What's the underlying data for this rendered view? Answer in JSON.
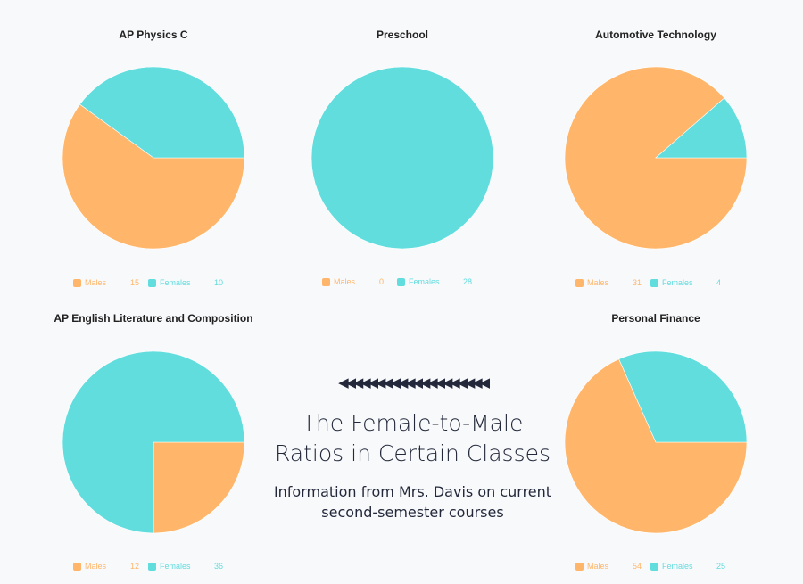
{
  "colors": {
    "males": "#ffb66a",
    "females": "#62ddde"
  },
  "chart_data": [
    {
      "type": "pie",
      "title": "AP Physics C",
      "labels": [
        "Males",
        "Females"
      ],
      "values": [
        15,
        10
      ]
    },
    {
      "type": "pie",
      "title": "Preschool",
      "labels": [
        "Males",
        "Females"
      ],
      "values": [
        0,
        28
      ]
    },
    {
      "type": "pie",
      "title": "Automotive Technology",
      "labels": [
        "Males",
        "Females"
      ],
      "values": [
        31,
        4
      ]
    },
    {
      "type": "pie",
      "title": "AP English Literature and Composition",
      "labels": [
        "Males",
        "Females"
      ],
      "values": [
        12,
        36
      ]
    },
    {
      "type": "pie",
      "title": "Personal Finance",
      "labels": [
        "Males",
        "Females"
      ],
      "values": [
        54,
        25
      ]
    }
  ],
  "infographic": {
    "decoration": "◀◀◀◀◀◀◀◀◀◀◀◀◀◀◀◀◀◀◀◀",
    "headline_line1": "The Female-to-Male",
    "headline_line2": "Ratios in Certain Classes",
    "subtitle_line1": "Information from Mrs. Davis on current",
    "subtitle_line2": "second-semester courses"
  }
}
